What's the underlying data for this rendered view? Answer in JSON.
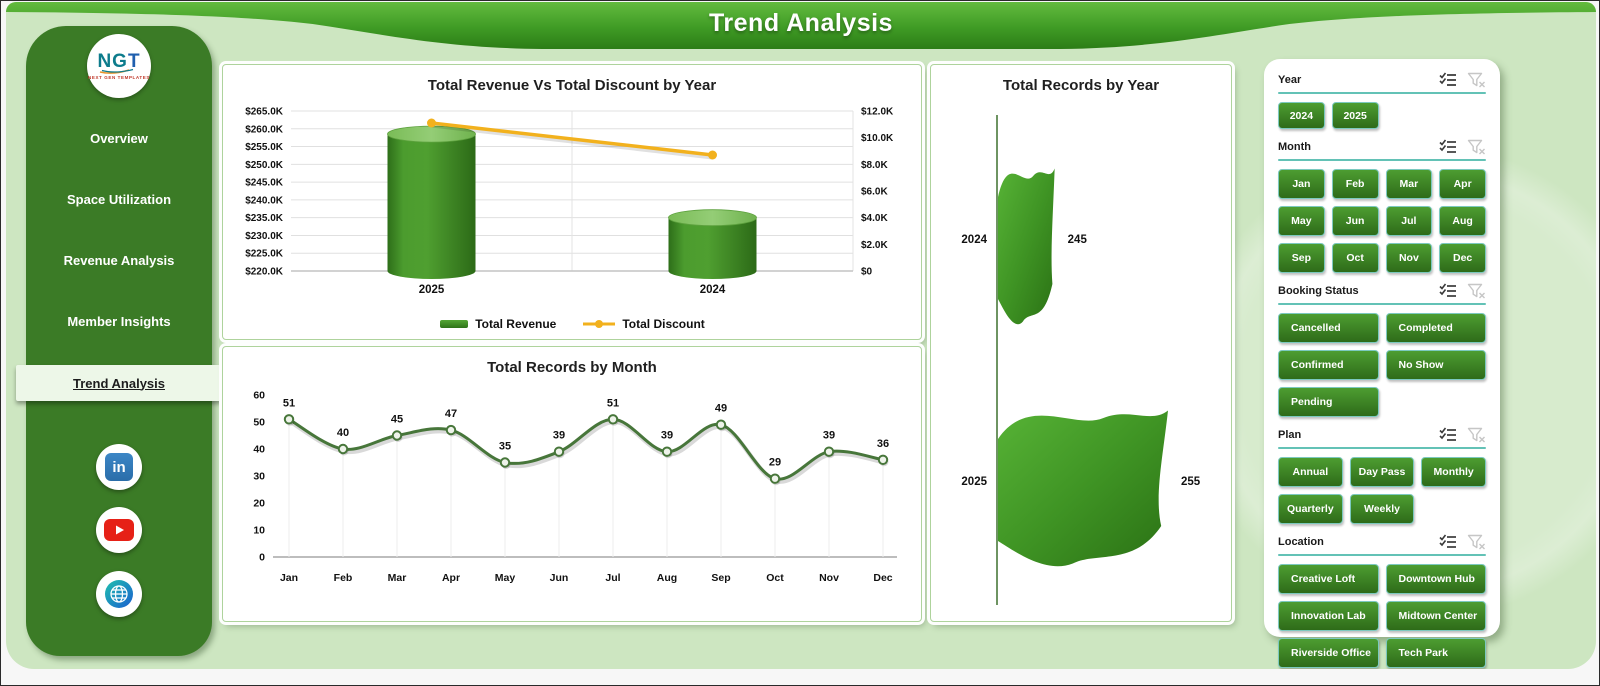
{
  "header": {
    "title": "Trend Analysis"
  },
  "sidebar": {
    "logo": {
      "acronym": "NGT",
      "caption": "NEXT GEN TEMPLATES"
    },
    "items": [
      {
        "label": "Overview",
        "active": false
      },
      {
        "label": "Space Utilization",
        "active": false
      },
      {
        "label": "Revenue Analysis",
        "active": false
      },
      {
        "label": "Member Insights",
        "active": false
      },
      {
        "label": "Trend Analysis",
        "active": true
      }
    ],
    "social": [
      {
        "name": "linkedin-icon",
        "label": "in"
      },
      {
        "name": "youtube-icon"
      },
      {
        "name": "website-globe-icon"
      }
    ]
  },
  "chart_data": [
    {
      "id": "revenue_vs_discount",
      "type": "bar",
      "subtype": "cylinder-bar-with-line",
      "title": "Total Revenue Vs Total Discount by Year",
      "categories": [
        "2025",
        "2024"
      ],
      "series": [
        {
          "name": "Total Revenue",
          "axis": "left",
          "style": "cylinder-bar",
          "values": [
            258500,
            235000
          ]
        },
        {
          "name": "Total Discount",
          "axis": "right",
          "style": "line",
          "values": [
            11100,
            8700
          ]
        }
      ],
      "left_axis": {
        "min": 220000,
        "max": 265000,
        "step": 5000,
        "ticks": [
          "$265.0K",
          "$260.0K",
          "$255.0K",
          "$250.0K",
          "$245.0K",
          "$240.0K",
          "$235.0K",
          "$230.0K",
          "$225.0K",
          "$220.0K"
        ]
      },
      "right_axis": {
        "min": 0,
        "max": 12000,
        "step": 2000,
        "ticks": [
          "$12.0K",
          "$10.0K",
          "$8.0K",
          "$6.0K",
          "$4.0K",
          "$2.0K",
          "$0"
        ]
      },
      "legend_position": "bottom",
      "grid": true
    },
    {
      "id": "records_by_month",
      "type": "line",
      "title": "Total Records by Month",
      "categories": [
        "Jan",
        "Feb",
        "Mar",
        "Apr",
        "May",
        "Jun",
        "Jul",
        "Aug",
        "Sep",
        "Oct",
        "Nov",
        "Dec"
      ],
      "values": [
        51,
        40,
        45,
        47,
        35,
        39,
        51,
        39,
        49,
        29,
        39,
        36
      ],
      "ylim": [
        0,
        60
      ],
      "ystep": 10,
      "grid": false,
      "data_labels": true
    },
    {
      "id": "records_by_year",
      "type": "bar",
      "subtype": "horizontal-flag-bar",
      "title": "Total Records by Year",
      "categories": [
        "2024",
        "2025"
      ],
      "values": [
        245,
        255
      ],
      "data_labels": true
    }
  ],
  "colors": {
    "sidebar_green": "#3b7b26",
    "canvas_green": "#cde6c1",
    "button_green_top": "#4d9d31",
    "button_green_bottom": "#2e6b19",
    "slicer_underline_teal": "#63c2b6",
    "revenue_bar_green": "#3e8a24",
    "discount_line_gold": "#f2b11d",
    "month_line_green": "#47763a"
  },
  "filters": {
    "slicers": [
      {
        "title": "Year",
        "columns": 2,
        "compact": true,
        "options": [
          "2024",
          "2025"
        ]
      },
      {
        "title": "Month",
        "columns": 4,
        "options": [
          "Jan",
          "Feb",
          "Mar",
          "Apr",
          "May",
          "Jun",
          "Jul",
          "Aug",
          "Sep",
          "Oct",
          "Nov",
          "Dec"
        ]
      },
      {
        "title": "Booking Status",
        "columns": 2,
        "options": [
          "Cancelled",
          "Completed",
          "Confirmed",
          "No Show",
          "Pending"
        ]
      },
      {
        "title": "Plan",
        "columns": 3,
        "options": [
          "Annual",
          "Day Pass",
          "Monthly",
          "Quarterly",
          "Weekly"
        ]
      },
      {
        "title": "Location",
        "columns": 2,
        "options": [
          "Creative Loft",
          "Downtown Hub",
          "Innovation Lab",
          "Midtown Center",
          "Riverside Office",
          "Tech Park"
        ]
      }
    ]
  }
}
